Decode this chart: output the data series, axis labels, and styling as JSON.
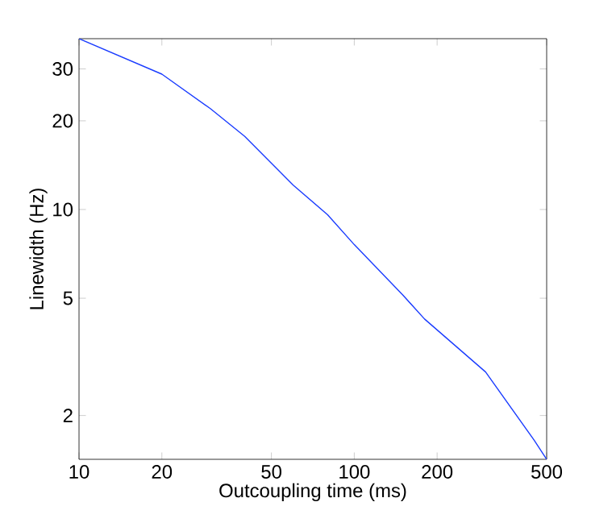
{
  "chart_data": {
    "type": "line",
    "xlabel": "Outcoupling time (ms)",
    "ylabel": "Linewidth (Hz)",
    "log": "xy",
    "xlim": [
      10,
      500
    ],
    "ylim": [
      1.42,
      38
    ],
    "xticks": [
      10,
      20,
      50,
      100,
      200,
      500
    ],
    "yticks": [
      2,
      5,
      10,
      20,
      30
    ],
    "grid": false,
    "marker": "none",
    "line_style": "solid",
    "x": [
      10,
      20,
      30,
      40,
      60,
      80,
      100,
      150,
      180,
      300,
      450,
      500
    ],
    "series": [
      {
        "color": "#1a3cff",
        "values": [
          38,
          28.8,
          22.0,
          17.7,
          12.1,
          9.6,
          7.6,
          5.13,
          4.25,
          2.81,
          1.65,
          1.42
        ]
      }
    ]
  }
}
